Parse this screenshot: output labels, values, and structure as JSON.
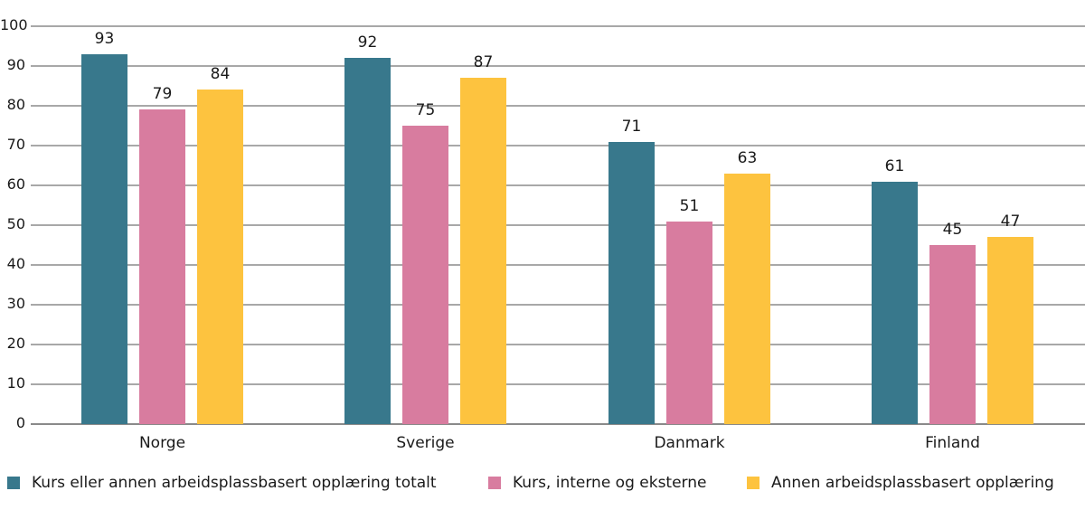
{
  "chart_data": {
    "type": "bar",
    "title": "",
    "xlabel": "",
    "ylabel": "",
    "ylim": [
      0,
      100
    ],
    "yticks": [
      0,
      10,
      20,
      30,
      40,
      50,
      60,
      70,
      80,
      90,
      100
    ],
    "grid": true,
    "legend_position": "bottom",
    "categories": [
      "Norge",
      "Sverige",
      "Danmark",
      "Finland"
    ],
    "series": [
      {
        "name": "Kurs eller annen arbeidsplassbasert opplæring totalt",
        "color": "#38788c",
        "values": [
          93,
          92,
          71,
          61
        ]
      },
      {
        "name": "Kurs, interne og eksterne",
        "color": "#d87c9f",
        "values": [
          79,
          75,
          51,
          45
        ]
      },
      {
        "name": "Annen arbeidsplassbasert opplæring",
        "color": "#fdc33f",
        "values": [
          84,
          87,
          63,
          47
        ]
      }
    ]
  }
}
